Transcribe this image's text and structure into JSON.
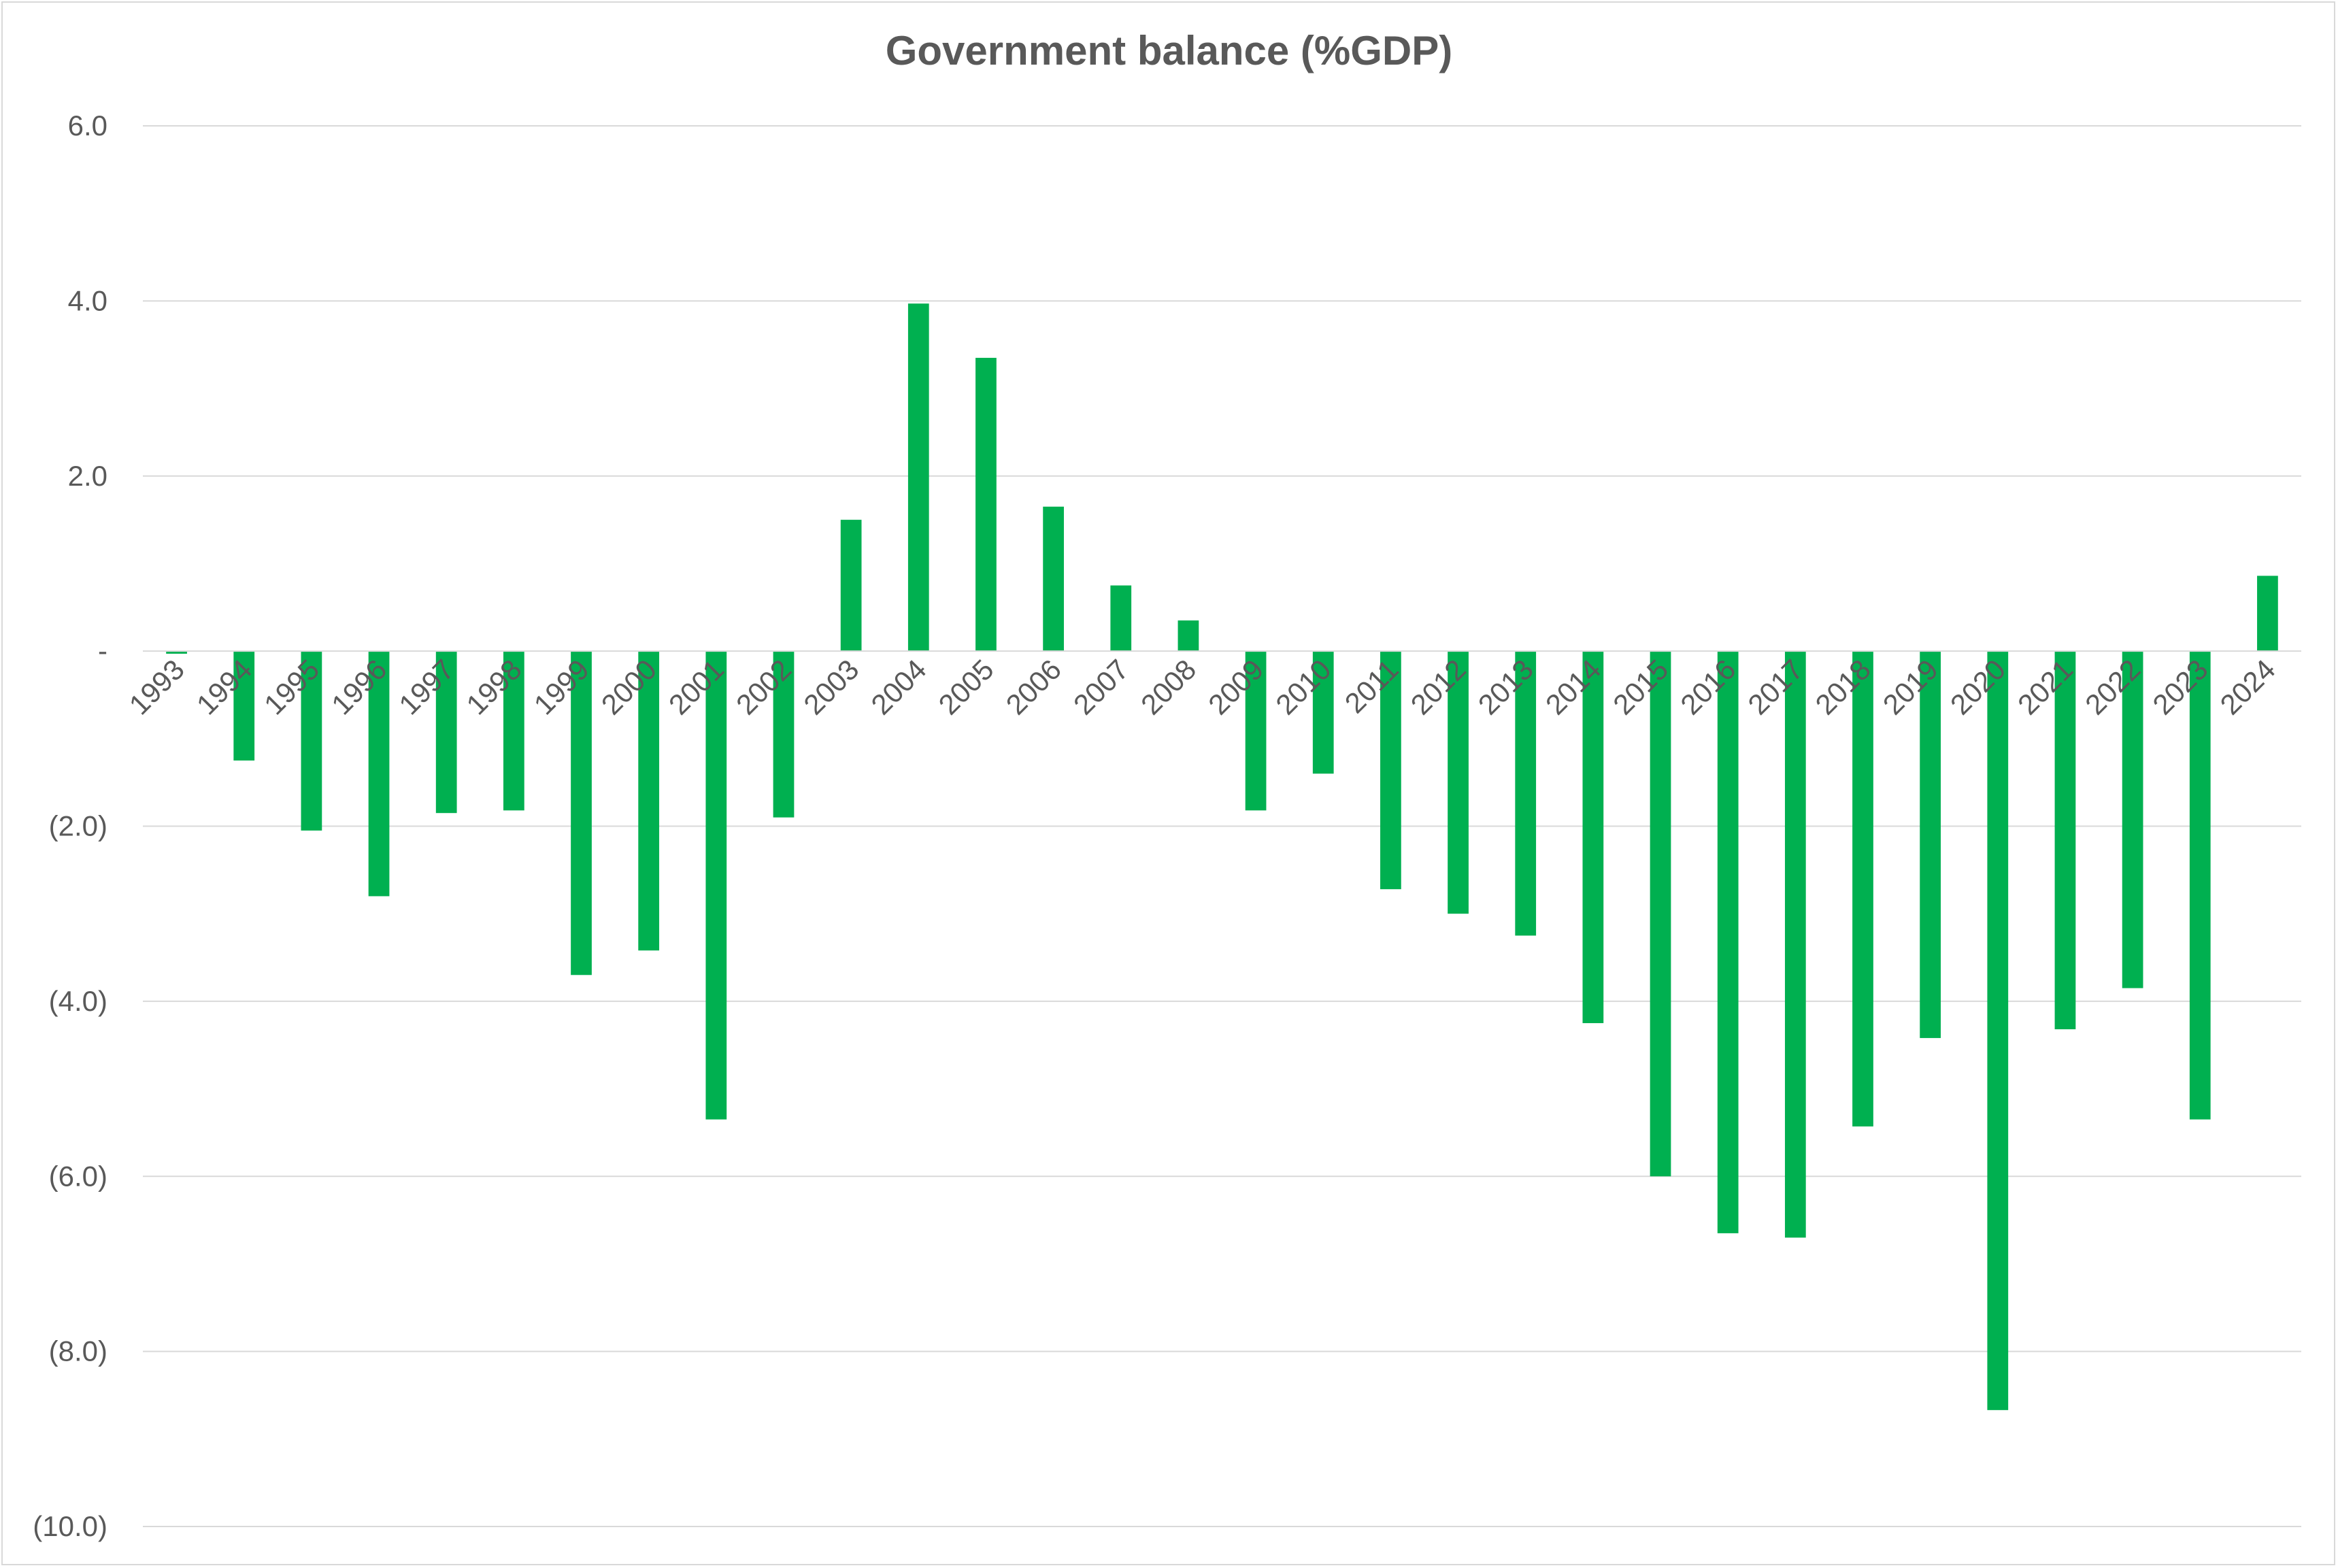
{
  "chart_data": {
    "type": "bar",
    "title": "Government balance (%GDP)",
    "xlabel": "",
    "ylabel": "",
    "ylim": [
      -10,
      6
    ],
    "y_ticks": [
      {
        "value": 6,
        "label": "6.0"
      },
      {
        "value": 4,
        "label": "4.0"
      },
      {
        "value": 2,
        "label": "2.0"
      },
      {
        "value": 0,
        "label": "-"
      },
      {
        "value": -2,
        "label": "(2.0)"
      },
      {
        "value": -4,
        "label": "(4.0)"
      },
      {
        "value": -6,
        "label": "(6.0)"
      },
      {
        "value": -8,
        "label": "(8.0)"
      },
      {
        "value": -10,
        "label": "(10.0)"
      }
    ],
    "grid": true,
    "legend": "none",
    "bar_color": "#00b050",
    "categories": [
      "1993",
      "1994",
      "1995",
      "1996",
      "1997",
      "1998",
      "1999",
      "2000",
      "2001",
      "2002",
      "2003",
      "2004",
      "2005",
      "2006",
      "2007",
      "2008",
      "2009",
      "2010",
      "2011",
      "2012",
      "2013",
      "2014",
      "2015",
      "2016",
      "2017",
      "2018",
      "2019",
      "2020",
      "2021",
      "2022",
      "2023",
      "2024"
    ],
    "values": [
      -0.03,
      -1.25,
      -2.05,
      -2.8,
      -1.85,
      -1.82,
      -3.7,
      -3.42,
      -5.35,
      -1.9,
      1.5,
      3.97,
      3.35,
      1.65,
      0.75,
      0.35,
      -1.82,
      -1.4,
      -2.72,
      -3.0,
      -3.25,
      -4.25,
      -6.0,
      -6.65,
      -6.7,
      -5.43,
      -4.42,
      -8.67,
      -4.32,
      -3.85,
      -5.35,
      0.86
    ]
  }
}
